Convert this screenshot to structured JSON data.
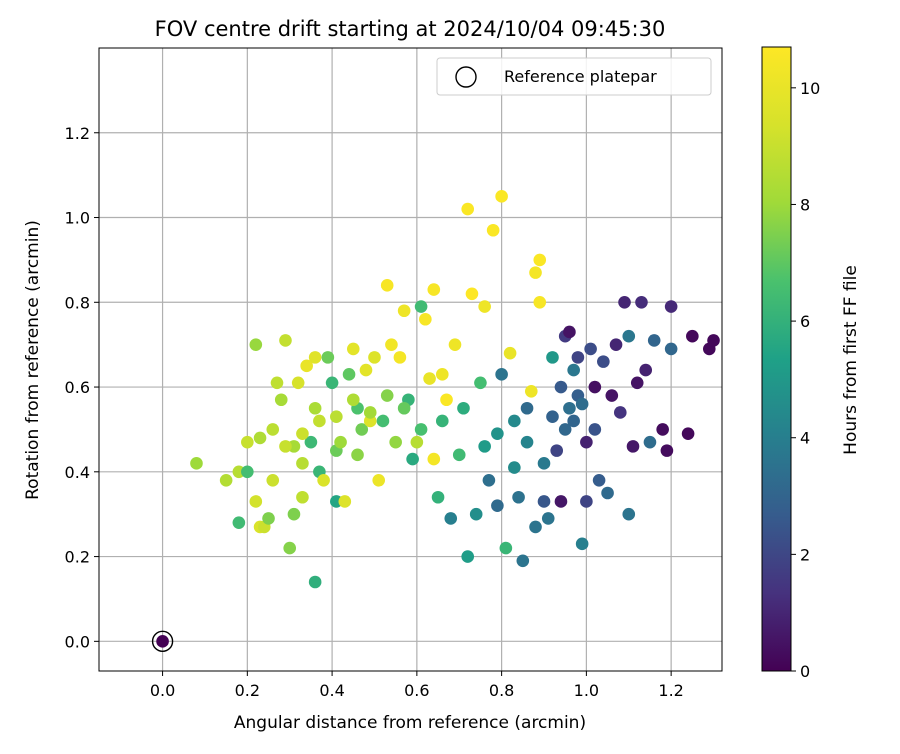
{
  "chart_data": {
    "type": "scatter",
    "title": "FOV centre drift starting at 2024/10/04 09:45:30",
    "xlabel": "Angular distance from reference (arcmin)",
    "ylabel": "Rotation from reference (arcmin)",
    "xlim": [
      -0.15,
      1.32
    ],
    "ylim": [
      -0.07,
      1.4
    ],
    "xticks": [
      "0.0",
      "0.2",
      "0.4",
      "0.6",
      "0.8",
      "1.0",
      "1.2"
    ],
    "yticks": [
      "0.0",
      "0.2",
      "0.4",
      "0.6",
      "0.8",
      "1.0",
      "1.2"
    ],
    "grid": true,
    "legend": {
      "placement": "top-right",
      "entries": [
        "Reference platepar"
      ]
    },
    "reference_point": {
      "x": 0.0,
      "y": 0.0,
      "label": "Reference platepar"
    },
    "colorbar": {
      "label": "Hours from first FF file",
      "colormap": "viridis",
      "range": [
        0,
        10.7
      ],
      "ticks": [
        "0",
        "2",
        "4",
        "6",
        "8",
        "10"
      ]
    },
    "series": [
      {
        "color_value": "hours",
        "points": [
          [
            0.36,
            0.14,
            5.9
          ],
          [
            0.08,
            0.42,
            8.0
          ],
          [
            0.15,
            0.38,
            8.5
          ],
          [
            0.18,
            0.4,
            8.6
          ],
          [
            0.18,
            0.28,
            6.4
          ],
          [
            0.2,
            0.4,
            6.5
          ],
          [
            0.22,
            0.33,
            9.3
          ],
          [
            0.22,
            0.7,
            7.9
          ],
          [
            0.23,
            0.27,
            9.5
          ],
          [
            0.24,
            0.27,
            9.1
          ],
          [
            0.25,
            0.29,
            7.5
          ],
          [
            0.26,
            0.38,
            9.1
          ],
          [
            0.27,
            0.61,
            8.8
          ],
          [
            0.28,
            0.57,
            8.2
          ],
          [
            0.29,
            0.71,
            8.9
          ],
          [
            0.3,
            0.22,
            7.6
          ],
          [
            0.31,
            0.3,
            7.5
          ],
          [
            0.31,
            0.46,
            8.2
          ],
          [
            0.32,
            0.61,
            9.4
          ],
          [
            0.33,
            0.34,
            8.8
          ],
          [
            0.33,
            0.42,
            8.6
          ],
          [
            0.34,
            0.65,
            10.0
          ],
          [
            0.35,
            0.47,
            6.3
          ],
          [
            0.36,
            0.55,
            8.3
          ],
          [
            0.36,
            0.67,
            9.7
          ],
          [
            0.37,
            0.4,
            6.2
          ],
          [
            0.38,
            0.38,
            9.5
          ],
          [
            0.39,
            0.67,
            7.2
          ],
          [
            0.4,
            0.61,
            6.2
          ],
          [
            0.41,
            0.33,
            5.5
          ],
          [
            0.41,
            0.45,
            7.2
          ],
          [
            0.42,
            0.47,
            8.0
          ],
          [
            0.43,
            0.33,
            9.6
          ],
          [
            0.44,
            0.63,
            7.0
          ],
          [
            0.45,
            0.69,
            9.8
          ],
          [
            0.46,
            0.55,
            6.7
          ],
          [
            0.46,
            0.44,
            7.7
          ],
          [
            0.47,
            0.5,
            7.3
          ],
          [
            0.48,
            0.64,
            9.8
          ],
          [
            0.49,
            0.52,
            9.6
          ],
          [
            0.5,
            0.67,
            9.6
          ],
          [
            0.51,
            0.38,
            10.1
          ],
          [
            0.52,
            0.52,
            6.5
          ],
          [
            0.53,
            0.84,
            10.5
          ],
          [
            0.54,
            0.7,
            10.3
          ],
          [
            0.55,
            0.47,
            7.8
          ],
          [
            0.56,
            0.67,
            10.4
          ],
          [
            0.57,
            0.78,
            10.2
          ],
          [
            0.58,
            0.57,
            6.1
          ],
          [
            0.59,
            0.43,
            5.7
          ],
          [
            0.6,
            0.47,
            8.6
          ],
          [
            0.61,
            0.79,
            6.4
          ],
          [
            0.62,
            0.76,
            10.5
          ],
          [
            0.63,
            0.62,
            10.0
          ],
          [
            0.64,
            0.43,
            10.4
          ],
          [
            0.64,
            0.83,
            10.5
          ],
          [
            0.65,
            0.34,
            6.0
          ],
          [
            0.66,
            0.63,
            10.2
          ],
          [
            0.67,
            0.57,
            10.6
          ],
          [
            0.68,
            0.29,
            4.0
          ],
          [
            0.69,
            0.7,
            10.2
          ],
          [
            0.7,
            0.44,
            6.4
          ],
          [
            0.72,
            0.2,
            5.2
          ],
          [
            0.72,
            1.02,
            10.6
          ],
          [
            0.73,
            0.82,
            10.7
          ],
          [
            0.74,
            0.3,
            4.6
          ],
          [
            0.75,
            0.61,
            6.5
          ],
          [
            0.76,
            0.79,
            10.2
          ],
          [
            0.77,
            0.38,
            3.4
          ],
          [
            0.78,
            0.97,
            10.6
          ],
          [
            0.79,
            0.32,
            3.2
          ],
          [
            0.8,
            1.05,
            10.6
          ],
          [
            0.8,
            0.63,
            3.6
          ],
          [
            0.81,
            0.22,
            6.2
          ],
          [
            0.82,
            0.68,
            10.0
          ],
          [
            0.83,
            0.41,
            4.5
          ],
          [
            0.84,
            0.34,
            3.5
          ],
          [
            0.85,
            0.19,
            3.6
          ],
          [
            0.86,
            0.55,
            3.2
          ],
          [
            0.87,
            0.59,
            10.2
          ],
          [
            0.88,
            0.87,
            10.4
          ],
          [
            0.88,
            0.27,
            3.6
          ],
          [
            0.89,
            0.9,
            10.6
          ],
          [
            0.89,
            0.8,
            10.5
          ],
          [
            0.9,
            0.33,
            2.5
          ],
          [
            0.91,
            0.29,
            3.6
          ],
          [
            0.92,
            0.67,
            5.0
          ],
          [
            0.93,
            0.45,
            1.9
          ],
          [
            0.94,
            0.33,
            0.6
          ],
          [
            0.95,
            0.72,
            1.6
          ],
          [
            0.96,
            0.73,
            0.5
          ],
          [
            0.97,
            0.64,
            3.7
          ],
          [
            0.98,
            0.67,
            1.9
          ],
          [
            0.99,
            0.23,
            4.0
          ],
          [
            1.0,
            0.47,
            0.9
          ],
          [
            1.0,
            0.33,
            1.9
          ],
          [
            1.01,
            0.69,
            2.2
          ],
          [
            1.02,
            0.6,
            0.4
          ],
          [
            1.03,
            0.38,
            2.7
          ],
          [
            1.04,
            0.66,
            2.2
          ],
          [
            1.05,
            0.35,
            3.2
          ],
          [
            1.06,
            0.58,
            0.5
          ],
          [
            1.07,
            0.7,
            1.0
          ],
          [
            1.08,
            0.54,
            1.4
          ],
          [
            1.09,
            0.8,
            1.0
          ],
          [
            1.1,
            0.3,
            3.6
          ],
          [
            1.1,
            0.72,
            3.7
          ],
          [
            1.11,
            0.46,
            0.6
          ],
          [
            1.12,
            0.61,
            0.5
          ],
          [
            1.13,
            0.8,
            1.2
          ],
          [
            1.14,
            0.64,
            0.9
          ],
          [
            1.15,
            0.47,
            3.3
          ],
          [
            1.16,
            0.71,
            3.0
          ],
          [
            1.18,
            0.5,
            0.3
          ],
          [
            1.19,
            0.45,
            0.3
          ],
          [
            1.2,
            0.69,
            3.1
          ],
          [
            1.2,
            0.79,
            1.1
          ],
          [
            1.24,
            0.49,
            0.2
          ],
          [
            1.25,
            0.72,
            0.2
          ],
          [
            1.29,
            0.69,
            0.2
          ],
          [
            1.3,
            0.71,
            0.2
          ],
          [
            0.96,
            0.55,
            3.4
          ],
          [
            0.97,
            0.52,
            3.0
          ],
          [
            0.98,
            0.58,
            2.8
          ],
          [
            0.95,
            0.5,
            3.1
          ],
          [
            0.92,
            0.53,
            2.9
          ],
          [
            0.99,
            0.56,
            3.3
          ],
          [
            0.94,
            0.6,
            2.6
          ],
          [
            1.02,
            0.5,
            2.4
          ],
          [
            0.9,
            0.42,
            3.8
          ],
          [
            0.86,
            0.47,
            4.2
          ],
          [
            0.83,
            0.52,
            4.4
          ],
          [
            0.79,
            0.49,
            4.8
          ],
          [
            0.76,
            0.46,
            5.1
          ],
          [
            0.71,
            0.55,
            5.8
          ],
          [
            0.66,
            0.52,
            6.1
          ],
          [
            0.61,
            0.5,
            6.6
          ],
          [
            0.57,
            0.55,
            7.1
          ],
          [
            0.53,
            0.58,
            7.6
          ],
          [
            0.49,
            0.54,
            8.1
          ],
          [
            0.45,
            0.57,
            8.4
          ],
          [
            0.41,
            0.53,
            8.7
          ],
          [
            0.37,
            0.52,
            8.9
          ],
          [
            0.33,
            0.49,
            9.1
          ],
          [
            0.29,
            0.46,
            9.0
          ],
          [
            0.26,
            0.5,
            8.7
          ],
          [
            0.23,
            0.48,
            8.4
          ],
          [
            0.2,
            0.47,
            9.0
          ]
        ]
      }
    ]
  }
}
